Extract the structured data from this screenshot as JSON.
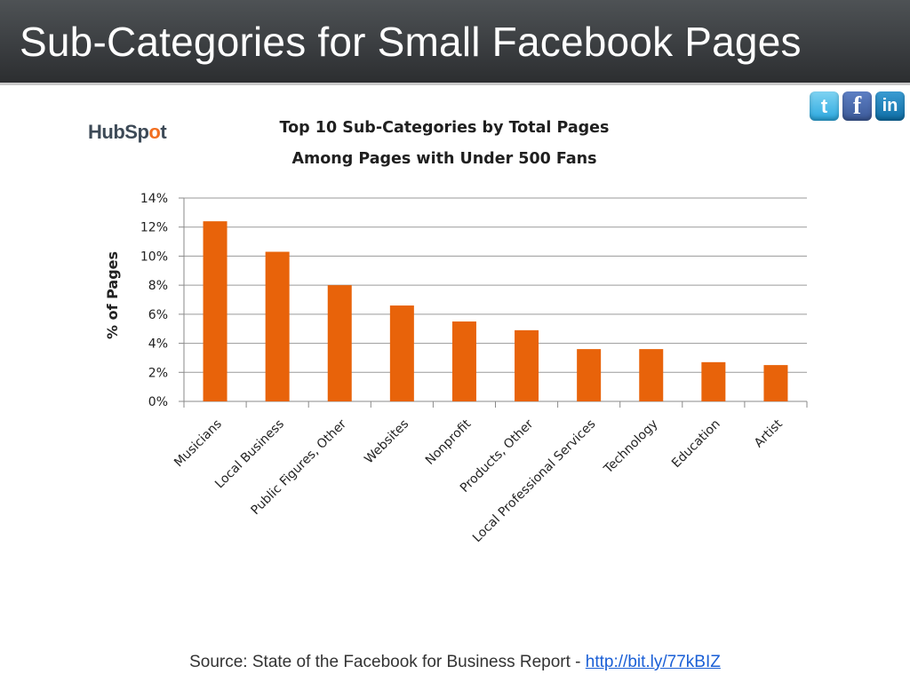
{
  "slide": {
    "title": "Sub-Categories for Small Facebook Pages"
  },
  "social": {
    "icons": [
      {
        "name": "twitter-icon",
        "glyph": "t",
        "color": "#2ba8df"
      },
      {
        "name": "facebook-icon",
        "glyph": "f",
        "color": "#3b5998"
      },
      {
        "name": "linkedin-icon",
        "glyph": "in",
        "color": "#0e6ea6"
      }
    ]
  },
  "logo": {
    "text_pre": "HubSp",
    "text_mark": "o",
    "text_post": "t"
  },
  "chart_data": {
    "type": "bar",
    "title_line1": "Top 10 Sub-Categories by Total Pages",
    "title_line2": "Among Pages with Under 500 Fans",
    "xlabel": "",
    "ylabel": "% of Pages",
    "categories": [
      "Musicians",
      "Local Business",
      "Public Figures, Other",
      "Websites",
      "Nonprofit",
      "Products, Other",
      "Local Professional Services",
      "Technology",
      "Education",
      "Artist"
    ],
    "values": [
      12.4,
      10.3,
      8.0,
      6.6,
      5.5,
      4.9,
      3.6,
      3.6,
      2.7,
      2.5
    ],
    "ylim": [
      0,
      14
    ],
    "yticks": [
      0,
      2,
      4,
      6,
      8,
      10,
      12,
      14
    ],
    "ytick_labels": [
      "0%",
      "2%",
      "4%",
      "6%",
      "8%",
      "10%",
      "12%",
      "14%"
    ],
    "bar_color": "#e8630a",
    "grid": true,
    "legend": "none"
  },
  "footer": {
    "source_text": "Source: State of the Facebook for Business Report - ",
    "source_link": "http://bit.ly/77kBIZ"
  }
}
